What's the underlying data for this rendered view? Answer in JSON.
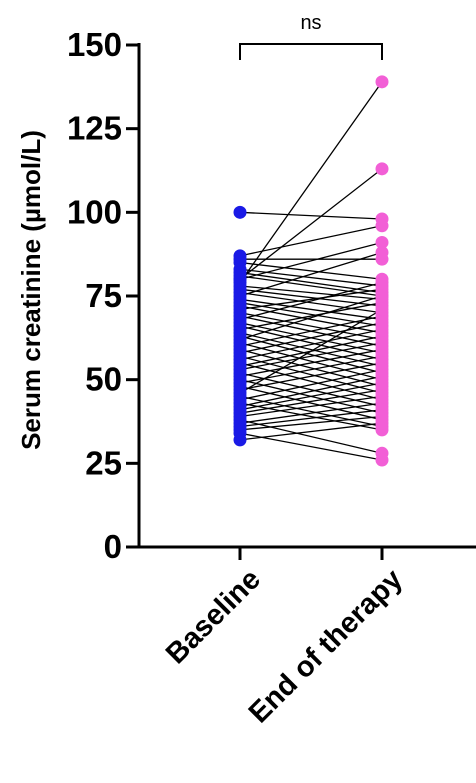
{
  "chart_data": {
    "type": "scatter",
    "subtype": "paired before-after dot plot",
    "ylabel": "Serum creatinine (µmol/L)",
    "ylim": [
      0,
      150
    ],
    "yticks": [
      0,
      25,
      50,
      75,
      100,
      125,
      150
    ],
    "categories": [
      "Baseline",
      "End of therapy"
    ],
    "colors": {
      "Baseline": "#1a1ae6",
      "End of therapy": "#f25fd6",
      "lines": "#000000"
    },
    "significance": {
      "label": "ns",
      "between": [
        "Baseline",
        "End of therapy"
      ]
    },
    "pairs": [
      [
        100,
        98
      ],
      [
        79,
        139
      ],
      [
        80,
        113
      ],
      [
        87,
        96
      ],
      [
        86,
        86
      ],
      [
        85,
        80
      ],
      [
        83,
        78
      ],
      [
        82,
        76
      ],
      [
        81,
        75
      ],
      [
        80,
        91
      ],
      [
        78,
        74
      ],
      [
        77,
        72
      ],
      [
        76,
        70
      ],
      [
        75,
        88
      ],
      [
        74,
        68
      ],
      [
        73,
        66
      ],
      [
        72,
        64
      ],
      [
        71,
        77
      ],
      [
        70,
        62
      ],
      [
        69,
        60
      ],
      [
        68,
        79
      ],
      [
        67,
        58
      ],
      [
        66,
        56
      ],
      [
        65,
        73
      ],
      [
        64,
        54
      ],
      [
        63,
        52
      ],
      [
        62,
        75
      ],
      [
        61,
        50
      ],
      [
        60,
        69
      ],
      [
        59,
        48
      ],
      [
        58,
        67
      ],
      [
        57,
        46
      ],
      [
        56,
        65
      ],
      [
        55,
        44
      ],
      [
        54,
        63
      ],
      [
        53,
        61
      ],
      [
        52,
        42
      ],
      [
        51,
        59
      ],
      [
        50,
        40
      ],
      [
        49,
        57
      ],
      [
        48,
        38
      ],
      [
        47,
        55
      ],
      [
        46,
        71
      ],
      [
        45,
        36
      ],
      [
        44,
        53
      ],
      [
        43,
        35
      ],
      [
        42,
        51
      ],
      [
        41,
        49
      ],
      [
        40,
        47
      ],
      [
        39,
        45
      ],
      [
        38,
        28
      ],
      [
        37,
        43
      ],
      [
        36,
        41
      ],
      [
        35,
        39
      ],
      [
        34,
        26
      ],
      [
        32,
        37
      ]
    ]
  }
}
